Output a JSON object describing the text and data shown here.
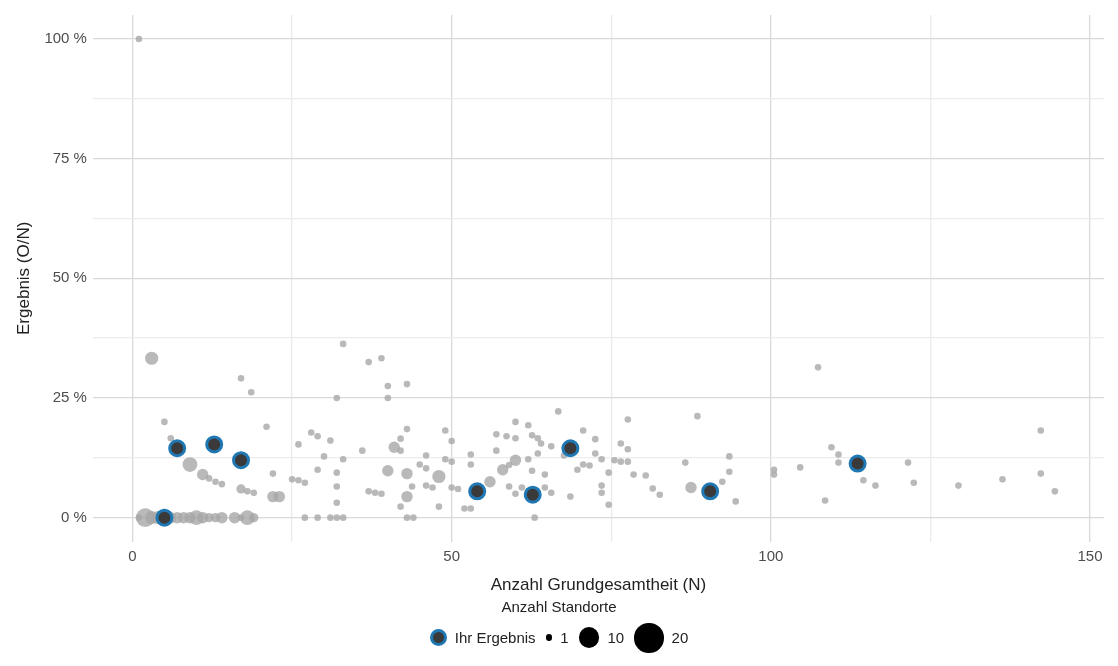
{
  "chart_data": {
    "type": "bubble",
    "xlabel": "Anzahl Grundgesamtheit (N)",
    "ylabel": "Ergebnis (O/N)",
    "legend_title": "Anzahl Standorte",
    "legend": "bottom",
    "grid": true,
    "marker": "circle",
    "xlim": [
      -6.2,
      152.2
    ],
    "xticks": [
      0,
      {
        "value": 25,
        "label": null
      },
      50,
      {
        "value": 75,
        "label": null
      },
      100,
      {
        "value": 125,
        "label": null
      },
      150
    ],
    "ylim": [
      -5,
      105
    ],
    "yticks": [
      {
        "value": 0,
        "label": "0 %"
      },
      {
        "value": 12.5,
        "label": null
      },
      {
        "value": 25,
        "label": "25 %"
      },
      {
        "value": 37.5,
        "label": null
      },
      {
        "value": 50,
        "label": "50 %"
      },
      {
        "value": 62.5,
        "label": null
      },
      {
        "value": 75,
        "label": "75 %"
      },
      {
        "value": 87.5,
        "label": null
      },
      {
        "value": 100,
        "label": "100 %"
      }
    ],
    "size_legend": [
      1,
      10,
      20
    ],
    "series": [
      {
        "color": "#a6a6a6",
        "x": [
          1,
          3,
          5,
          6,
          9,
          11,
          12,
          13,
          14,
          17,
          18.6,
          17,
          18,
          19,
          21,
          22,
          22,
          23,
          25,
          26,
          27,
          26,
          28,
          29,
          29,
          30,
          31,
          32,
          32,
          32,
          32,
          33,
          33,
          36,
          37,
          39,
          40,
          40,
          37,
          38,
          39,
          40,
          41,
          42,
          42,
          43,
          43,
          43,
          43,
          42,
          43.8,
          45,
          46,
          46,
          46,
          47,
          48,
          49,
          49,
          50,
          50,
          50,
          48,
          52,
          53,
          53,
          53,
          51,
          56,
          57,
          57,
          58,
          58.6,
          59,
          60,
          60,
          60,
          59,
          60,
          61,
          62,
          62,
          62.6,
          62.6,
          63.5,
          63.5,
          64,
          64.6,
          64.6,
          65.6,
          65.6,
          66.7,
          67.6,
          68.6,
          69.7,
          70.6,
          70.6,
          71.6,
          72.5,
          72.5,
          73.5,
          73.5,
          73.5,
          74.6,
          74.6,
          75.5,
          76.5,
          76.5,
          77.6,
          77.6,
          77.6,
          78.5,
          80.4,
          81.5,
          82.6,
          86.6,
          87.5,
          88.5,
          92.4,
          93.5,
          93.5,
          94.5,
          100.5,
          100.5,
          104.6,
          107.4,
          108.5,
          109.5,
          110.6,
          110.6,
          114.5,
          116.4,
          121.5,
          122.4,
          129.4,
          136.3,
          142.3,
          142.3,
          144.5,
          1,
          2,
          3,
          4,
          6,
          7,
          8,
          9,
          10,
          11,
          12,
          13,
          14,
          16,
          17,
          18,
          19,
          27,
          29,
          31,
          32,
          33,
          43,
          44,
          63
        ],
        "values": [
          100,
          33.3,
          20,
          16.6,
          11.1,
          9,
          8.2,
          7.5,
          7,
          29.1,
          26.2,
          6,
          5.5,
          5.2,
          19,
          9.2,
          4.4,
          4.4,
          8,
          7.8,
          7.3,
          15.3,
          17.8,
          17,
          10,
          12.8,
          16.1,
          25,
          6.5,
          9.4,
          3.1,
          12.2,
          36.3,
          14,
          32.5,
          33.3,
          27.5,
          25,
          5.5,
          5.2,
          5,
          9.8,
          14.7,
          14,
          16.5,
          18.5,
          27.9,
          9.2,
          4.4,
          2.3,
          6.5,
          11.1,
          13,
          10.3,
          6.7,
          6.3,
          8.6,
          18.2,
          12.2,
          16,
          11.7,
          6.3,
          2.3,
          1.9,
          1.9,
          13.2,
          11.1,
          6,
          7.5,
          14,
          17.4,
          10,
          17,
          11,
          20,
          16.6,
          12,
          6.5,
          5,
          6.3,
          19.3,
          12.2,
          17.2,
          9.8,
          16.6,
          13.4,
          15.5,
          9,
          6.3,
          14.9,
          5.2,
          22.2,
          13,
          4.4,
          10,
          18.2,
          11.1,
          10.9,
          16.4,
          13.4,
          12.2,
          6.7,
          5.2,
          9.4,
          2.7,
          12,
          15.5,
          11.7,
          14.3,
          11.7,
          20.5,
          9,
          8.8,
          6.1,
          4.8,
          11.5,
          6.3,
          21.2,
          7.5,
          9.6,
          12.8,
          3.4,
          10,
          9,
          10.5,
          31.4,
          3.6,
          14.7,
          13.2,
          11.5,
          7.8,
          6.7,
          11.5,
          7.3,
          6.7,
          8,
          18.2,
          9.2,
          5.5,
          0,
          0,
          0,
          0,
          0,
          0,
          0,
          0,
          0,
          0,
          0,
          0,
          0,
          0,
          0,
          0,
          0,
          0,
          0,
          0,
          0,
          0,
          0,
          0,
          0
        ],
        "sizes": [
          1,
          4,
          1,
          1,
          5,
          3,
          1,
          1,
          1,
          1,
          1,
          2,
          1,
          1,
          1,
          1,
          3,
          3,
          1,
          1,
          1,
          1,
          1,
          1,
          1,
          1,
          1,
          1,
          1,
          1,
          1,
          1,
          1,
          1,
          1,
          1,
          1,
          1,
          1,
          1,
          1,
          3,
          3,
          1,
          1,
          1,
          1,
          3,
          3,
          1,
          1,
          1,
          1,
          1,
          1,
          1,
          4,
          1,
          1,
          1,
          1,
          1,
          1,
          1,
          1,
          1,
          1,
          1,
          3,
          1,
          1,
          3,
          1,
          1,
          1,
          1,
          3,
          1,
          1,
          1,
          1,
          1,
          1,
          1,
          1,
          1,
          1,
          1,
          1,
          1,
          1,
          1,
          1,
          1,
          1,
          1,
          1,
          1,
          1,
          1,
          1,
          1,
          1,
          1,
          1,
          1,
          1,
          1,
          1,
          1,
          1,
          1,
          1,
          1,
          1,
          1,
          3,
          1,
          1,
          1,
          1,
          1,
          1,
          1,
          1,
          1,
          1,
          1,
          1,
          1,
          1,
          1,
          1,
          1,
          1,
          1,
          1,
          1,
          1,
          1,
          8,
          4,
          4,
          3,
          3,
          3,
          3,
          5,
          3,
          2,
          2,
          3,
          3,
          1,
          5,
          2,
          1,
          1,
          1,
          1,
          1,
          1,
          1,
          1
        ]
      },
      {
        "name": "Ihr Ergebnis",
        "color": "#1f78b4",
        "type": "scatter",
        "x": [
          5,
          7,
          12.8,
          17,
          54,
          62.7,
          68.6,
          90.5,
          113.6
        ],
        "values": [
          0,
          14.5,
          15.3,
          12,
          5.5,
          4.8,
          14.5,
          5.5,
          11.3
        ]
      }
    ]
  }
}
